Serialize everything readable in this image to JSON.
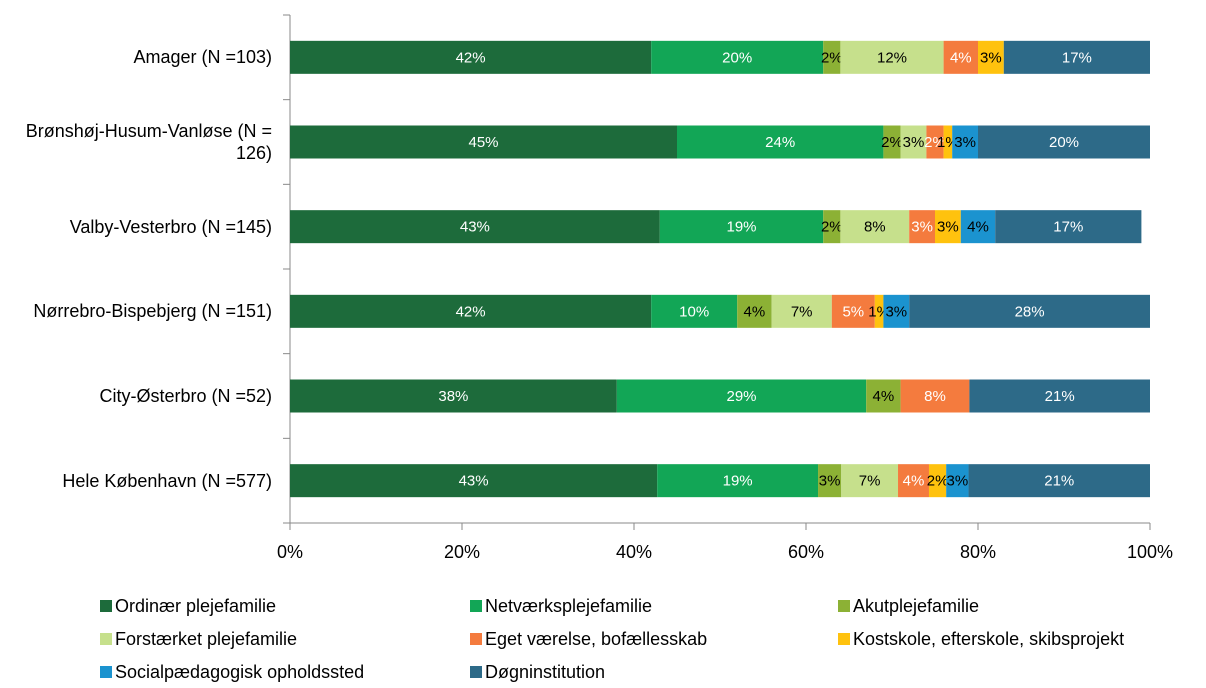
{
  "chart_data": {
    "type": "stacked-bar-horizontal",
    "categories": [
      "Amager (N =103)",
      "Brønshøj-Husum-Vanløse (N = 126)",
      "Valby-Vesterbro (N =145)",
      "Nørrebro-Bispebjerg (N =151)",
      "City-Østerbro (N =52)",
      "Hele København (N =577)"
    ],
    "xlim": [
      0,
      100
    ],
    "xticks": [
      {
        "value": 0,
        "label": "0%"
      },
      {
        "value": 20,
        "label": "20%"
      },
      {
        "value": 40,
        "label": "40%"
      },
      {
        "value": 60,
        "label": "60%"
      },
      {
        "value": 80,
        "label": "80%"
      },
      {
        "value": 100,
        "label": "100%"
      }
    ],
    "legend": "bottom",
    "series": [
      {
        "name": "Ordinær plejefamilie",
        "color": "#1d6b3b",
        "label_color": "#ffffff",
        "values": [
          42,
          45,
          43,
          42,
          38,
          42.7
        ],
        "value_labels": [
          "42%",
          "45%",
          "43%",
          "42%",
          "38%",
          "43%"
        ]
      },
      {
        "name": "Netværksplejefamilie",
        "color": "#12a656",
        "label_color": "#ffffff",
        "values": [
          20,
          24,
          19,
          10,
          29,
          18.7
        ],
        "value_labels": [
          "20%",
          "24%",
          "19%",
          "10%",
          "29%",
          "19%"
        ]
      },
      {
        "name": "Akutplejefamilie",
        "color": "#8cb135",
        "label_color": "#000000",
        "values": [
          2,
          2,
          2,
          4,
          4,
          2.7
        ],
        "value_labels": [
          "2%",
          "2%",
          "2%",
          "4%",
          "4%",
          "3%"
        ]
      },
      {
        "name": "Forstærket plejefamilie",
        "color": "#c6e08c",
        "label_color": "#000000",
        "values": [
          12,
          3,
          8,
          7,
          0,
          6.6
        ],
        "value_labels": [
          "12%",
          "3%",
          "8%",
          "7%",
          null,
          "7%"
        ]
      },
      {
        "name": "Eget værelse, bofællesskab",
        "color": "#f47b3e",
        "label_color": "#ffffff",
        "values": [
          4,
          2,
          3,
          5,
          8,
          3.6
        ],
        "value_labels": [
          "4%",
          "2%",
          "3%",
          "5%",
          "8%",
          "4%"
        ]
      },
      {
        "name": "Kostskole, efterskole, skibsprojekt",
        "color": "#ffc20e",
        "label_color": "#000000",
        "values": [
          3,
          1,
          3,
          1,
          0,
          2.0
        ],
        "value_labels": [
          "3%",
          "1%",
          "3%",
          "1%",
          null,
          "2%"
        ]
      },
      {
        "name": "Socialpædagogisk opholdssted",
        "color": "#1b93cf",
        "label_color": "#000000",
        "values": [
          0,
          3,
          4,
          3,
          0,
          2.6
        ],
        "value_labels": [
          null,
          "3%",
          "4%",
          "3%",
          null,
          "3%"
        ]
      },
      {
        "name": "Døgninstitution",
        "color": "#2d6a88",
        "label_color": "#ffffff",
        "values": [
          17,
          20,
          17,
          28,
          21,
          21.1
        ],
        "value_labels": [
          "17%",
          "20%",
          "17%",
          "28%",
          "21%",
          "21%"
        ]
      }
    ]
  }
}
